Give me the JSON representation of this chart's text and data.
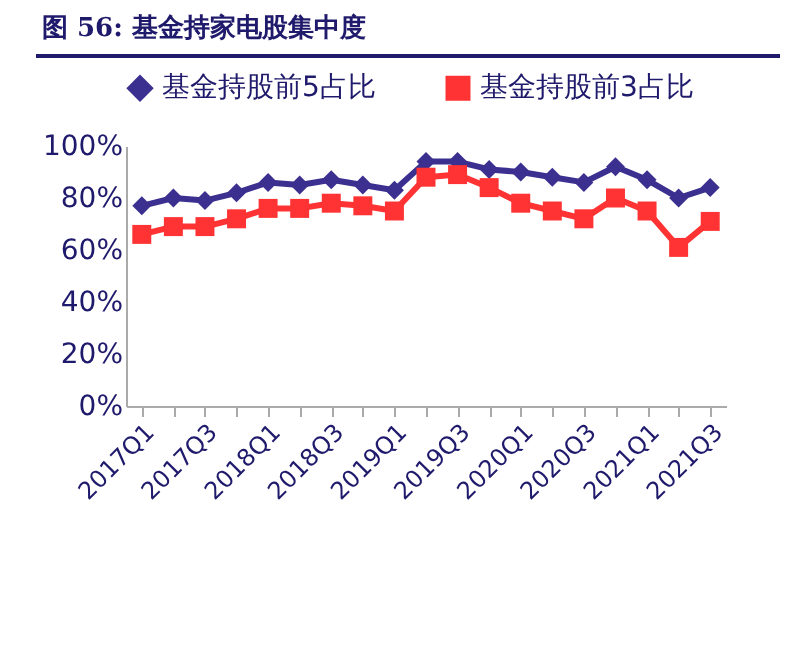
{
  "chart_data": {
    "type": "line",
    "title": "图 56:  基金持家电股集中度",
    "categories": [
      "2017Q1",
      null,
      "2017Q3",
      null,
      "2018Q1",
      null,
      "2018Q3",
      null,
      "2019Q1",
      null,
      "2019Q3",
      null,
      "2020Q1",
      null,
      "2020Q3",
      null,
      "2021Q1",
      null,
      "2021Q3"
    ],
    "series": [
      {
        "name": "基金持股前5占比",
        "color": "#3b2f8f",
        "marker": "diamond",
        "values": [
          77,
          80,
          79,
          82,
          86,
          85,
          87,
          85,
          83,
          94,
          94,
          91,
          90,
          88,
          86,
          92,
          87,
          80,
          84
        ]
      },
      {
        "name": "基金持股前3占比",
        "color": "#ff3333",
        "marker": "square",
        "values": [
          66,
          69,
          69,
          72,
          76,
          76,
          78,
          77,
          75,
          88,
          89,
          84,
          78,
          75,
          72,
          80,
          75,
          61,
          71
        ]
      }
    ],
    "ylim": [
      0,
      100
    ],
    "yticks": [
      {
        "value": 0,
        "label": "0%"
      },
      {
        "value": 20,
        "label": "20%"
      },
      {
        "value": 40,
        "label": "40%"
      },
      {
        "value": 60,
        "label": "60%"
      },
      {
        "value": 80,
        "label": "80%"
      },
      {
        "value": 100,
        "label": "100%"
      }
    ],
    "grid": false,
    "legend": "top",
    "line_style": "solid"
  }
}
